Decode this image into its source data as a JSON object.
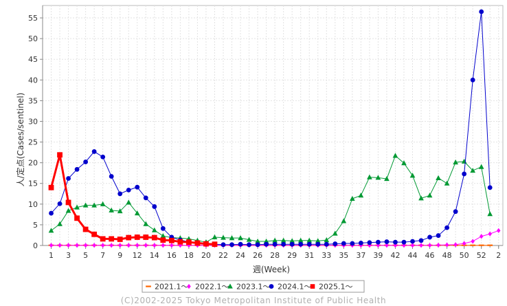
{
  "chart_data": {
    "type": "line",
    "xlabel": "週(Week)",
    "ylabel": "人/定点(Cases/sentinel)",
    "ylim": [
      0,
      58
    ],
    "xlim": [
      0,
      53.5
    ],
    "yticks": [
      0,
      5,
      10,
      15,
      20,
      25,
      30,
      35,
      40,
      45,
      50,
      55
    ],
    "xticks": [
      1,
      3,
      5,
      7,
      9,
      11,
      13,
      15,
      17,
      19,
      21,
      23,
      25,
      27,
      29,
      31,
      33,
      35,
      37,
      39,
      41,
      43,
      45,
      47,
      49,
      51,
      53
    ],
    "xtick_labels": [
      "1",
      "3",
      "5",
      "7",
      "9",
      "12",
      "14",
      "16",
      "18",
      "20",
      "22",
      "24",
      "26",
      "28",
      "29",
      "31",
      "33",
      "35",
      "37",
      "39",
      "42",
      "44",
      "46",
      "48",
      "50",
      "52",
      "2"
    ],
    "grid": true,
    "legend_position": "bottom",
    "series": [
      {
        "name": "2021.1～",
        "color": "#ff6600",
        "marker": "dash",
        "values": [
          0.05,
          0.05,
          0.05,
          0.05,
          0.05,
          0.05,
          0.05,
          0.05,
          0.05,
          0.05,
          0.05,
          0.05,
          0.05,
          0.05,
          0.05,
          0.05,
          0.05,
          0.05,
          0.05,
          0.05,
          0.05,
          0.05,
          0.05,
          0.05,
          0.05,
          0.05,
          0.05,
          0.05,
          0.05,
          0.05,
          0.05,
          0.05,
          0.05,
          0.05,
          0.05,
          0.05,
          0.05,
          0.05,
          0.05,
          0.05,
          0.05,
          0.05,
          0.05,
          0.05,
          0.05,
          0.05,
          0.05,
          0.05,
          0.05,
          0.05,
          0.05,
          0.05
        ]
      },
      {
        "name": "2022.1～",
        "color": "#ff00ff",
        "marker": "diamond",
        "values": [
          0.05,
          0.05,
          0.05,
          0.05,
          0.05,
          0.05,
          0.05,
          0.05,
          0.05,
          0.05,
          0.05,
          0.05,
          0.05,
          0.05,
          0.05,
          0.05,
          0.05,
          0.05,
          0.05,
          0.05,
          0.05,
          0.05,
          0.05,
          0.05,
          0.05,
          0.05,
          0.05,
          0.05,
          0.05,
          0.05,
          0.05,
          0.05,
          0.05,
          0.05,
          0.05,
          0.05,
          0.05,
          0.05,
          0.05,
          0.05,
          0.05,
          0.05,
          0.05,
          0.05,
          0.05,
          0.1,
          0.15,
          0.2,
          0.5,
          1.0,
          2.2,
          2.8,
          3.6
        ]
      },
      {
        "name": "2023.1～",
        "color": "#009933",
        "marker": "triangle",
        "values": [
          3.6,
          5.2,
          8.4,
          9.2,
          9.7,
          9.7,
          10.0,
          8.5,
          8.3,
          10.4,
          7.8,
          5.2,
          3.7,
          2.3,
          1.9,
          1.8,
          1.6,
          1.2,
          0.8,
          2.0,
          1.9,
          1.8,
          1.8,
          1.4,
          1.0,
          1.0,
          1.2,
          1.2,
          1.1,
          1.2,
          1.2,
          1.1,
          1.3,
          2.9,
          5.9,
          11.3,
          12.1,
          16.5,
          16.4,
          16.1,
          21.7,
          19.9,
          16.9,
          11.4,
          12.1,
          16.3,
          15.0,
          20.1,
          20.3,
          18.1,
          19.0,
          7.6
        ]
      },
      {
        "name": "2024.1～",
        "color": "#0000cc",
        "marker": "circle",
        "values": [
          7.8,
          10.1,
          16.2,
          18.4,
          20.2,
          22.7,
          21.4,
          16.7,
          12.5,
          13.4,
          14.1,
          11.5,
          9.4,
          4.1,
          2.0,
          1.3,
          0.9,
          0.6,
          0.4,
          0.3,
          0.2,
          0.2,
          0.3,
          0.2,
          0.2,
          0.3,
          0.3,
          0.3,
          0.3,
          0.3,
          0.3,
          0.3,
          0.3,
          0.4,
          0.5,
          0.5,
          0.6,
          0.7,
          0.8,
          0.9,
          0.8,
          0.8,
          1.0,
          1.2,
          2.0,
          2.4,
          4.3,
          8.2,
          17.3,
          40.0,
          56.5,
          14.0
        ]
      },
      {
        "name": "2025.1～",
        "color": "#ff0000",
        "marker": "square",
        "values": [
          14.0,
          21.9,
          10.4,
          6.6,
          3.9,
          2.7,
          1.6,
          1.6,
          1.5,
          1.9,
          2.0,
          2.0,
          1.9,
          1.3,
          1.2,
          0.9,
          0.8,
          0.6,
          0.4,
          0.3
        ]
      }
    ]
  },
  "footer": "(C)2002-2025 Tokyo Metropolitan Institute of Public Health"
}
